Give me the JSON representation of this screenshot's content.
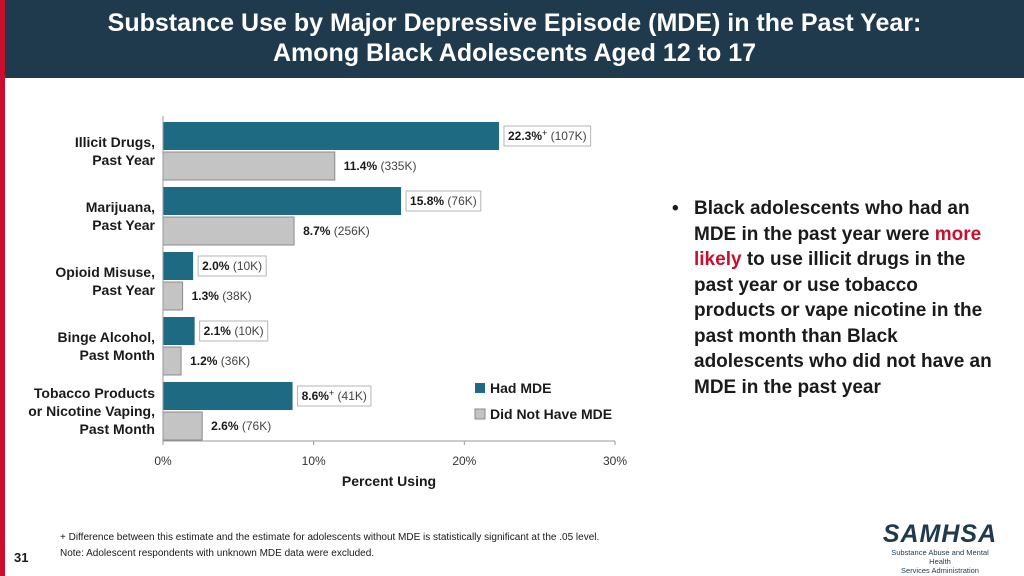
{
  "header": {
    "title_line1": "Substance Use by Major Depressive Episode (MDE) in the Past Year:",
    "title_line2": "Among Black Adolescents Aged 12 to 17"
  },
  "colors": {
    "had_mde": "#1e6a82",
    "no_mde": "#c4c4c4",
    "accent": "#c8102e",
    "header_bg": "#1f3a4d"
  },
  "chart_data": {
    "type": "bar",
    "orientation": "horizontal",
    "categories": [
      [
        "Illicit Drugs,",
        "Past Year"
      ],
      [
        "Marijuana,",
        "Past Year"
      ],
      [
        "Opioid Misuse,",
        "Past Year"
      ],
      [
        "Binge Alcohol,",
        "Past Month"
      ],
      [
        "Tobacco Products",
        "or Nicotine Vaping,",
        "Past Month"
      ]
    ],
    "series": [
      {
        "name": "Had MDE",
        "values": [
          22.3,
          15.8,
          2.0,
          2.1,
          8.6
        ],
        "value_labels": [
          "22.3%",
          "15.8%",
          "2.0%",
          "2.1%",
          "8.6%"
        ],
        "significance": [
          "+",
          "",
          "",
          "",
          "+"
        ],
        "counts": [
          "(107K)",
          "(76K)",
          "(10K)",
          "(10K)",
          "(41K)"
        ]
      },
      {
        "name": "Did Not Have MDE",
        "values": [
          11.4,
          8.7,
          1.3,
          1.2,
          2.6
        ],
        "value_labels": [
          "11.4%",
          "8.7%",
          "1.3%",
          "1.2%",
          "2.6%"
        ],
        "significance": [
          "",
          "",
          "",
          "",
          ""
        ],
        "counts": [
          "(335K)",
          "(256K)",
          "(38K)",
          "(36K)",
          "(76K)"
        ]
      }
    ],
    "xlim": [
      0,
      30
    ],
    "xticks": [
      0,
      10,
      20,
      30
    ],
    "xtick_labels": [
      "0%",
      "10%",
      "20%",
      "30%"
    ],
    "xlabel": "Percent Using",
    "legend_position": "bottom-right"
  },
  "bullet": {
    "marker": "•",
    "text_before": "Black adolescents who had an MDE in the past year were ",
    "highlight": "more likely",
    "text_after": " to use illicit drugs in the past year or use tobacco products or vape nicotine in the past month than Black adolescents who did not have an MDE in the past year"
  },
  "footnotes": {
    "line1": "+ Difference between this estimate and the estimate for adolescents without MDE is statistically significant at the .05 level.",
    "line2": "Note: Adolescent respondents with unknown MDE data were excluded."
  },
  "page_number": "31",
  "logo": {
    "mark": "SAMHSA",
    "line1": "Substance Abuse and Mental Health",
    "line2": "Services Administration"
  }
}
